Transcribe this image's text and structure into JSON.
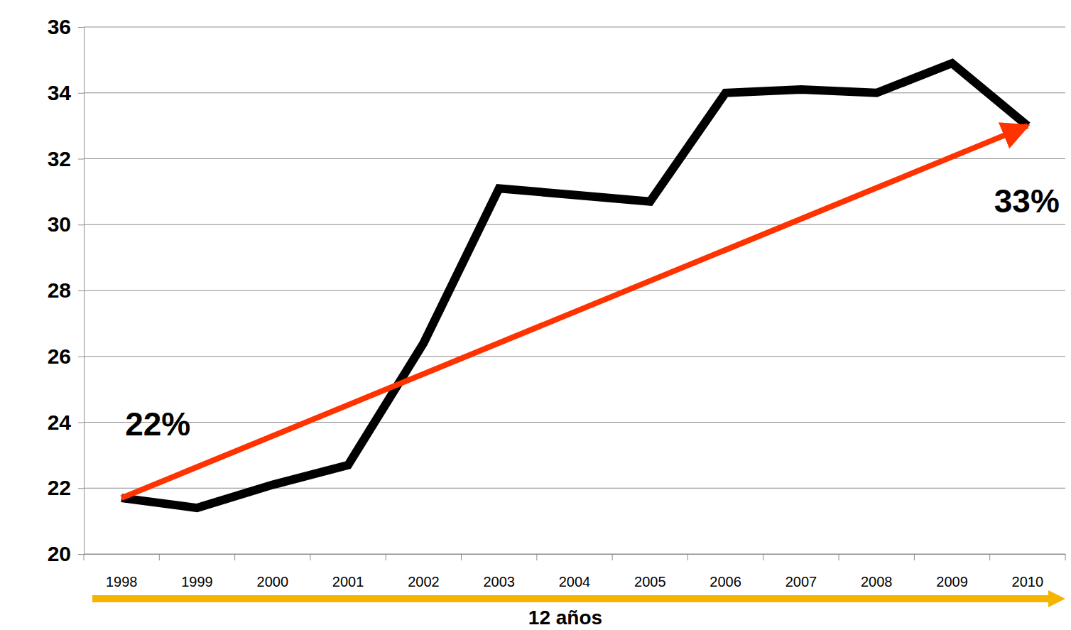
{
  "chart_data": {
    "type": "line",
    "categories": [
      "1998",
      "1999",
      "2000",
      "2001",
      "2002",
      "2003",
      "2004",
      "2005",
      "2006",
      "2007",
      "2008",
      "2009",
      "2010"
    ],
    "series": [
      {
        "color": "#000000",
        "values": [
          21.7,
          21.4,
          22.1,
          22.7,
          26.4,
          31.1,
          30.9,
          30.7,
          34.0,
          34.1,
          34.0,
          34.9,
          33.0
        ]
      },
      {
        "type": "arrow",
        "color": "#ff3300",
        "values": [
          21.7,
          null,
          null,
          null,
          null,
          null,
          null,
          null,
          null,
          null,
          null,
          null,
          33.0
        ]
      }
    ],
    "ylim": [
      20,
      36
    ],
    "yticks": [
      20,
      22,
      24,
      26,
      28,
      30,
      32,
      34,
      36
    ],
    "grid": true,
    "xlabel": "12 años",
    "annotations": [
      {
        "text": "22%",
        "category": "1998"
      },
      {
        "text": "33%",
        "category": "2010"
      }
    ]
  }
}
